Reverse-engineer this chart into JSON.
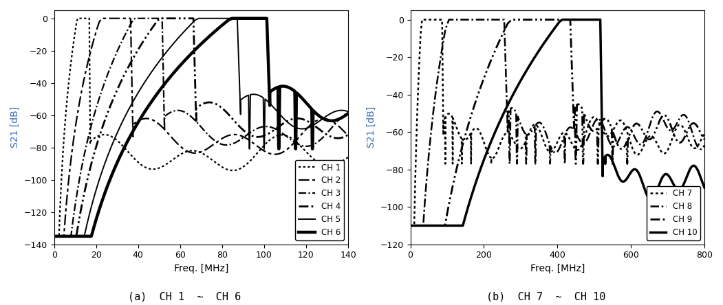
{
  "title_a": "(a)  CH 1  ~  CH 6",
  "title_b": "(b)  CH 7  ~  CH 10",
  "ylabel": "S21 [dB]",
  "xlabel": "Freq. [MHz]",
  "background": "#ffffff",
  "text_color": "#000000",
  "axis_label_color": "#3a6bbf",
  "plot_a": {
    "xlim": [
      0,
      140
    ],
    "ylim": [
      -140,
      5
    ],
    "yticks": [
      0,
      -20,
      -40,
      -60,
      -80,
      -100,
      -120,
      -140
    ],
    "xticks": [
      0,
      20,
      40,
      60,
      80,
      100,
      120,
      140
    ]
  },
  "plot_b": {
    "xlim": [
      0,
      800
    ],
    "ylim": [
      -120,
      5
    ],
    "yticks": [
      0,
      -20,
      -40,
      -60,
      -80,
      -100,
      -120
    ],
    "xticks": [
      0,
      200,
      400,
      600,
      800
    ]
  },
  "channels_a": [
    {
      "label": "CH 1",
      "fc_low": 11,
      "fc_high": 17,
      "floor": -135,
      "noise_floor": -85,
      "notch_freqs": [],
      "ls_type": "dot",
      "lw": 1.6
    },
    {
      "label": "CH 2",
      "fc_low": 22,
      "fc_high": 37,
      "floor": -135,
      "noise_floor": -75,
      "notch_freqs": [],
      "ls_type": "longdash",
      "lw": 1.6
    },
    {
      "label": "CH 3",
      "fc_low": 38,
      "fc_high": 52,
      "floor": -135,
      "noise_floor": -70,
      "notch_freqs": [],
      "ls_type": "dashdot",
      "lw": 1.6
    },
    {
      "label": "CH 4",
      "fc_low": 50,
      "fc_high": 67,
      "floor": -135,
      "noise_floor": -65,
      "notch_freqs": [],
      "ls_type": "dashdotdot",
      "lw": 2.0
    },
    {
      "label": "CH 5",
      "fc_low": 68,
      "fc_high": 88,
      "floor": -135,
      "noise_floor": -60,
      "notch_freqs": [
        93,
        100,
        107
      ],
      "ls_type": "solid",
      "lw": 1.4
    },
    {
      "label": "CH 6",
      "fc_low": 84,
      "fc_high": 102,
      "floor": -135,
      "noise_floor": -55,
      "notch_freqs": [
        107,
        115,
        123
      ],
      "ls_type": "solidthick",
      "lw": 3.2
    }
  ],
  "channels_b": [
    {
      "label": "CH 7",
      "fc_low": 30,
      "fc_high": 88,
      "floor": -110,
      "noise_floor": -63,
      "notch_freqs": [
        95,
        115,
        140,
        165,
        220
      ],
      "ls_type": "dot",
      "lw": 1.8
    },
    {
      "label": "CH 8",
      "fc_low": 100,
      "fc_high": 260,
      "floor": -110,
      "noise_floor": -60,
      "notch_freqs": [
        270,
        290,
        315,
        340,
        380,
        420
      ],
      "ls_type": "dashdot",
      "lw": 1.8
    },
    {
      "label": "CH 9",
      "fc_low": 270,
      "fc_high": 440,
      "floor": -110,
      "noise_floor": -58,
      "notch_freqs": [
        450,
        470,
        510,
        550,
        590
      ],
      "ls_type": "dashdotdot",
      "lw": 2.0
    },
    {
      "label": "CH 10",
      "fc_low": 410,
      "fc_high": 520,
      "floor": -110,
      "noise_floor": -85,
      "notch_freqs": [
        530,
        560,
        600,
        650,
        710,
        760
      ],
      "ls_type": "solid",
      "lw": 2.5
    }
  ],
  "legend_fontsize": 8.5,
  "title_fontsize": 11
}
